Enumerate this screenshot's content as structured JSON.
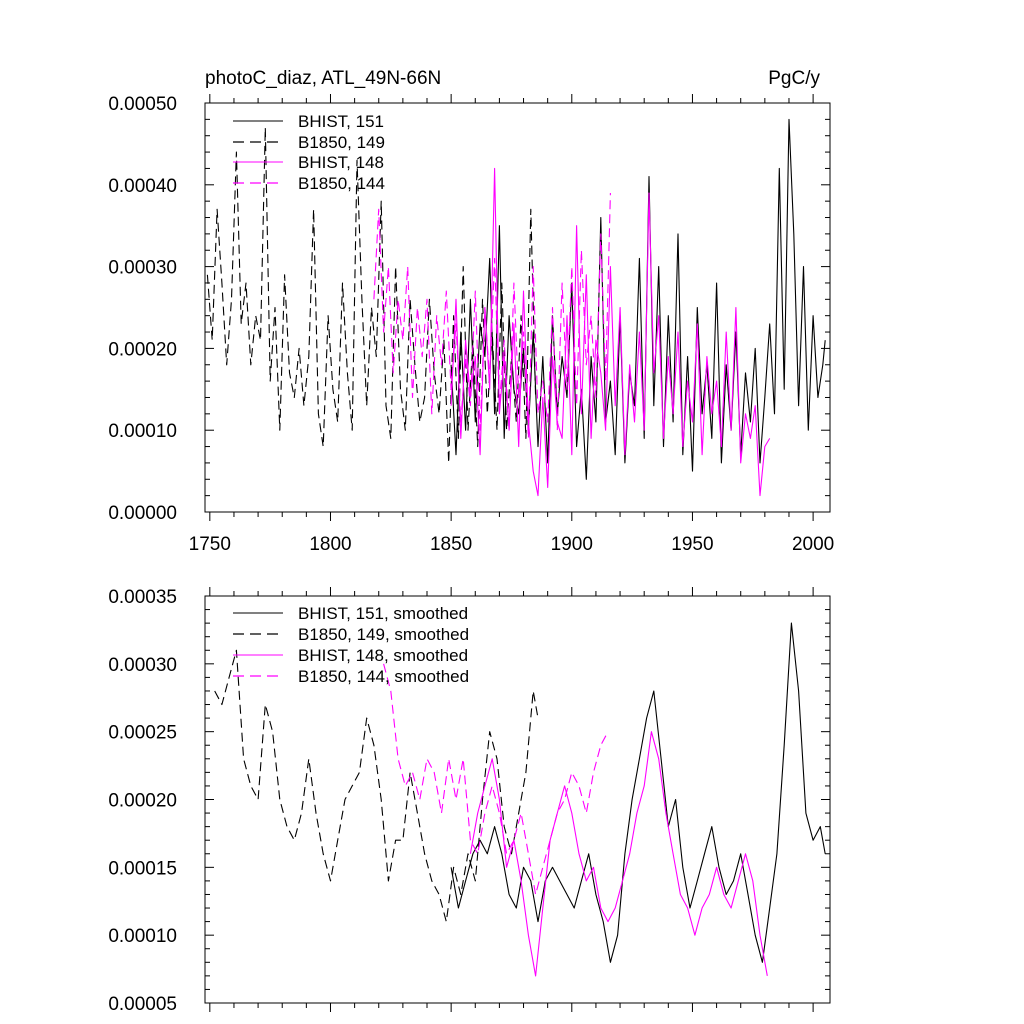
{
  "colors": {
    "black": "#000000",
    "magenta": "#ff00ff"
  },
  "chart_data": [
    {
      "type": "line",
      "title": "photoC_diaz, ATL_49N-66N",
      "units": "PgC/y",
      "xlabel": "",
      "ylabel": "",
      "xlim": [
        1748,
        2007
      ],
      "ylim": [
        0.0,
        0.0005
      ],
      "x_ticks": [
        "1750",
        "1800",
        "1850",
        "1900",
        "1950",
        "2000"
      ],
      "y_ticks": [
        "0.00000",
        "0.00010",
        "0.00020",
        "0.00030",
        "0.00040",
        "0.00050"
      ],
      "series": [
        {
          "name": "BHIST, 151",
          "color": "#000000",
          "dash": "solid",
          "x": [
            1850,
            1852,
            1854,
            1856,
            1858,
            1860,
            1862,
            1864,
            1866,
            1868,
            1870,
            1872,
            1874,
            1876,
            1878,
            1880,
            1882,
            1884,
            1886,
            1888,
            1890,
            1892,
            1894,
            1896,
            1898,
            1900,
            1902,
            1904,
            1906,
            1908,
            1910,
            1912,
            1914,
            1916,
            1918,
            1920,
            1922,
            1924,
            1926,
            1928,
            1930,
            1932,
            1934,
            1936,
            1938,
            1940,
            1942,
            1944,
            1946,
            1948,
            1950,
            1952,
            1954,
            1956,
            1958,
            1960,
            1962,
            1964,
            1966,
            1968,
            1970,
            1972,
            1974,
            1976,
            1978,
            1980,
            1982,
            1984,
            1986,
            1988,
            1990,
            1992,
            1994,
            1996,
            1998,
            2000,
            2002,
            2004,
            2005
          ],
          "values": [
            0.00018,
            7e-05,
            0.00022,
            0.0001,
            0.00026,
            0.00011,
            0.00023,
            0.00019,
            0.00031,
            0.00012,
            0.00035,
            9e-05,
            0.00024,
            0.00015,
            0.00012,
            0.0002,
            0.0001,
            0.00022,
            8e-05,
            0.00019,
            6e-05,
            0.00024,
            0.00012,
            0.00019,
            0.00014,
            0.00028,
            8e-05,
            0.00015,
            4e-05,
            0.00019,
            0.00011,
            0.00036,
            0.00011,
            0.00016,
            7e-05,
            0.00024,
            6e-05,
            0.00017,
            0.00013,
            0.00031,
            9e-05,
            0.00041,
            0.00013,
            0.0003,
            8e-05,
            0.00024,
            0.00011,
            0.00034,
            7e-05,
            0.00019,
            5e-05,
            0.00025,
            0.00012,
            0.00018,
            9e-05,
            0.00028,
            6e-05,
            0.00018,
            0.0001,
            0.00022,
            7e-05,
            0.00017,
            0.00011,
            0.0002,
            6e-05,
            0.00014,
            0.00023,
            0.00012,
            0.00042,
            0.00015,
            0.00048,
            0.00034,
            0.00013,
            0.0003,
            0.0001,
            0.00024,
            0.00014,
            0.00018,
            0.00021
          ]
        },
        {
          "name": "B1850, 149",
          "color": "#000000",
          "dash": "dashed",
          "x": [
            1749,
            1751,
            1753,
            1755,
            1757,
            1759,
            1761,
            1763,
            1765,
            1767,
            1769,
            1771,
            1773,
            1775,
            1777,
            1779,
            1781,
            1783,
            1785,
            1787,
            1789,
            1791,
            1793,
            1795,
            1797,
            1799,
            1801,
            1803,
            1805,
            1807,
            1809,
            1811,
            1813,
            1815,
            1817,
            1819,
            1821,
            1823,
            1825,
            1827,
            1829,
            1831,
            1833,
            1835,
            1837,
            1839,
            1841,
            1843,
            1845,
            1847,
            1849,
            1851,
            1853,
            1855,
            1857,
            1859,
            1861,
            1863,
            1865,
            1867,
            1869,
            1871,
            1873,
            1875,
            1877,
            1879,
            1881,
            1883,
            1885
          ],
          "values": [
            0.00029,
            0.00021,
            0.00037,
            0.00028,
            0.00018,
            0.00026,
            0.00044,
            0.00023,
            0.00028,
            0.00018,
            0.00024,
            0.00021,
            0.00047,
            0.00016,
            0.00025,
            0.0001,
            0.00029,
            0.00017,
            0.00014,
            0.0002,
            0.00013,
            0.00019,
            0.00037,
            0.00012,
            8e-05,
            0.00024,
            0.00015,
            0.00011,
            0.00028,
            0.00017,
            0.0001,
            0.00043,
            0.00026,
            0.00013,
            0.00025,
            0.00019,
            0.00038,
            0.00013,
            9e-05,
            0.0003,
            0.00015,
            0.0001,
            0.00026,
            0.00018,
            0.00011,
            0.00014,
            0.00026,
            0.00017,
            0.00012,
            0.00021,
            6e-05,
            0.00024,
            9e-05,
            0.0003,
            0.0001,
            0.00021,
            8e-05,
            0.00026,
            0.00012,
            0.00022,
            0.0001,
            0.00028,
            0.0001,
            0.00019,
            0.00011,
            0.00024,
            9e-05,
            0.00037,
            0.00014
          ]
        },
        {
          "name": "BHIST, 148",
          "color": "#ff00ff",
          "dash": "solid",
          "x": [
            1850,
            1852,
            1854,
            1856,
            1858,
            1860,
            1862,
            1864,
            1866,
            1868,
            1870,
            1872,
            1874,
            1876,
            1878,
            1880,
            1882,
            1884,
            1886,
            1888,
            1890,
            1892,
            1894,
            1896,
            1898,
            1900,
            1902,
            1904,
            1906,
            1908,
            1910,
            1912,
            1914,
            1916,
            1918,
            1920,
            1922,
            1924,
            1926,
            1928,
            1930,
            1932,
            1934,
            1936,
            1938,
            1940,
            1942,
            1944,
            1946,
            1948,
            1950,
            1952,
            1954,
            1956,
            1958,
            1960,
            1962,
            1964,
            1966,
            1968,
            1970,
            1972,
            1974,
            1976,
            1978,
            1980,
            1982
          ],
          "values": [
            0.00013,
            0.00026,
            9e-05,
            0.00021,
            0.00014,
            0.00019,
            7e-05,
            0.00025,
            0.00015,
            0.00042,
            0.00012,
            0.00019,
            0.0001,
            0.00023,
            8e-05,
            0.00027,
            0.00011,
            5e-05,
            2e-05,
            0.00014,
            3e-05,
            0.00019,
            0.00011,
            9e-05,
            0.00024,
            7e-05,
            0.00035,
            0.00012,
            0.00029,
            9e-05,
            0.00021,
            0.00017,
            0.0001,
            0.0003,
            0.00013,
            0.00025,
            7e-05,
            0.00018,
            0.00011,
            0.00022,
            0.0001,
            0.00039,
            0.00017,
            0.00024,
            9e-05,
            0.00019,
            0.00012,
            0.00022,
            8e-05,
            0.00016,
            0.00011,
            0.00023,
            7e-05,
            0.00019,
            0.00012,
            0.00016,
            8e-05,
            0.00022,
            0.0001,
            0.00025,
            6e-05,
            0.00012,
            9e-05,
            0.00013,
            2e-05,
            8e-05,
            9e-05
          ]
        },
        {
          "name": "B1850, 144",
          "color": "#ff00ff",
          "dash": "dashed",
          "x": [
            1818,
            1820,
            1822,
            1824,
            1826,
            1828,
            1830,
            1832,
            1834,
            1836,
            1838,
            1840,
            1842,
            1844,
            1846,
            1848,
            1850,
            1852,
            1854,
            1856,
            1858,
            1860,
            1862,
            1864,
            1866,
            1868,
            1870,
            1872,
            1874,
            1876,
            1878,
            1880,
            1882,
            1884,
            1886,
            1888,
            1890,
            1892,
            1894,
            1896,
            1898,
            1900,
            1902,
            1904,
            1906,
            1908,
            1910,
            1912,
            1914,
            1916
          ],
          "values": [
            0.00026,
            0.00037,
            0.00022,
            0.0003,
            0.00017,
            0.00026,
            0.00021,
            0.0003,
            0.00014,
            0.00025,
            0.00019,
            0.00026,
            0.00012,
            0.00024,
            0.00018,
            0.00027,
            0.00015,
            0.00023,
            0.00011,
            0.00019,
            0.00013,
            0.00027,
            0.0001,
            0.00025,
            0.00016,
            0.00031,
            0.00013,
            0.00021,
            0.0001,
            0.00028,
            0.00014,
            0.00022,
            9e-05,
            0.0003,
            0.00012,
            0.00016,
            0.00011,
            0.00025,
            0.0001,
            0.00028,
            0.00015,
            0.0003,
            0.00013,
            0.00032,
            0.00018,
            0.00024,
            0.00014,
            0.00034,
            0.00016,
            0.00039
          ]
        }
      ]
    },
    {
      "type": "line",
      "title": "",
      "xlabel": "",
      "ylabel": "",
      "xlim": [
        1748,
        2007
      ],
      "ylim": [
        5e-05,
        0.00035
      ],
      "y_ticks": [
        "0.00005",
        "0.00010",
        "0.00015",
        "0.00020",
        "0.00025",
        "0.00030",
        "0.00035"
      ],
      "series": [
        {
          "name": "BHIST, 151, smoothed",
          "color": "#000000",
          "dash": "solid",
          "x": [
            1850,
            1853,
            1856,
            1859,
            1862,
            1865,
            1868,
            1871,
            1874,
            1877,
            1880,
            1883,
            1886,
            1889,
            1892,
            1895,
            1898,
            1901,
            1904,
            1907,
            1910,
            1913,
            1916,
            1919,
            1922,
            1925,
            1928,
            1931,
            1934,
            1937,
            1940,
            1943,
            1946,
            1949,
            1952,
            1955,
            1958,
            1961,
            1964,
            1967,
            1970,
            1973,
            1976,
            1979,
            1982,
            1985,
            1988,
            1991,
            1994,
            1997,
            2000,
            2003,
            2005
          ],
          "values": [
            0.00015,
            0.00012,
            0.00014,
            0.00016,
            0.00017,
            0.00016,
            0.00018,
            0.00016,
            0.00013,
            0.00012,
            0.00015,
            0.00014,
            0.00011,
            0.00014,
            0.00015,
            0.00014,
            0.00013,
            0.00012,
            0.00014,
            0.00016,
            0.00013,
            0.00011,
            8e-05,
            0.0001,
            0.00016,
            0.0002,
            0.00023,
            0.00026,
            0.00028,
            0.00023,
            0.00018,
            0.0002,
            0.00015,
            0.00012,
            0.00014,
            0.00016,
            0.00018,
            0.00015,
            0.00013,
            0.00014,
            0.00016,
            0.00013,
            0.0001,
            8e-05,
            0.00012,
            0.00016,
            0.00024,
            0.00033,
            0.00028,
            0.00019,
            0.00017,
            0.00018,
            0.00016
          ]
        },
        {
          "name": "B1850, 149, smoothed",
          "color": "#000000",
          "dash": "dashed",
          "x": [
            1752,
            1755,
            1758,
            1761,
            1764,
            1767,
            1770,
            1773,
            1776,
            1779,
            1782,
            1785,
            1788,
            1791,
            1794,
            1797,
            1800,
            1803,
            1806,
            1809,
            1812,
            1815,
            1818,
            1821,
            1824,
            1827,
            1830,
            1833,
            1836,
            1839,
            1842,
            1845,
            1848,
            1851,
            1854,
            1857,
            1860,
            1863,
            1866,
            1869,
            1872,
            1875,
            1878,
            1881,
            1884,
            1886
          ],
          "values": [
            0.00028,
            0.00027,
            0.00029,
            0.00031,
            0.00023,
            0.00021,
            0.0002,
            0.00027,
            0.00025,
            0.0002,
            0.00018,
            0.00017,
            0.00019,
            0.00023,
            0.00019,
            0.00016,
            0.00014,
            0.00017,
            0.0002,
            0.00021,
            0.00022,
            0.00026,
            0.00024,
            0.0002,
            0.00014,
            0.00017,
            0.00017,
            0.00022,
            0.00019,
            0.00016,
            0.00014,
            0.00013,
            0.00011,
            0.00015,
            0.00013,
            0.00016,
            0.00014,
            0.0002,
            0.00025,
            0.00023,
            0.00018,
            0.00016,
            0.00019,
            0.00022,
            0.00028,
            0.00026
          ]
        },
        {
          "name": "BHIST, 148, smoothed",
          "color": "#ff00ff",
          "dash": "solid",
          "x": [
            1858,
            1861,
            1864,
            1867,
            1870,
            1873,
            1876,
            1879,
            1882,
            1885,
            1888,
            1891,
            1894,
            1897,
            1900,
            1903,
            1906,
            1909,
            1912,
            1915,
            1918,
            1921,
            1924,
            1927,
            1930,
            1933,
            1936,
            1939,
            1942,
            1945,
            1948,
            1951,
            1954,
            1957,
            1960,
            1963,
            1966,
            1969,
            1972,
            1975,
            1978,
            1981
          ],
          "values": [
            0.00016,
            0.00019,
            0.00021,
            0.00023,
            0.0002,
            0.00015,
            0.00017,
            0.00014,
            0.0001,
            7e-05,
            0.00012,
            0.00017,
            0.00019,
            0.00021,
            0.00019,
            0.00016,
            0.00014,
            0.00015,
            0.00012,
            0.00011,
            0.00012,
            0.00014,
            0.00016,
            0.00019,
            0.00021,
            0.00025,
            0.00023,
            0.00019,
            0.00016,
            0.00013,
            0.00012,
            0.0001,
            0.00012,
            0.00013,
            0.00015,
            0.00013,
            0.00012,
            0.00014,
            0.00016,
            0.00014,
            0.0001,
            7e-05
          ]
        },
        {
          "name": "B1850, 144, smoothed",
          "color": "#ff00ff",
          "dash": "dashed",
          "x": [
            1822,
            1825,
            1828,
            1831,
            1834,
            1837,
            1840,
            1843,
            1846,
            1849,
            1852,
            1855,
            1858,
            1861,
            1864,
            1867,
            1870,
            1873,
            1876,
            1879,
            1882,
            1885,
            1888,
            1891,
            1894,
            1897,
            1900,
            1903,
            1906,
            1909,
            1912,
            1915
          ],
          "values": [
            0.0003,
            0.00028,
            0.00023,
            0.00021,
            0.00022,
            0.0002,
            0.00023,
            0.00022,
            0.00019,
            0.00023,
            0.0002,
            0.00023,
            0.00017,
            0.00016,
            0.00019,
            0.00021,
            0.00019,
            0.00016,
            0.00017,
            0.00019,
            0.00016,
            0.00013,
            0.00015,
            0.00017,
            0.00019,
            0.0002,
            0.00022,
            0.00021,
            0.00019,
            0.00022,
            0.00024,
            0.00025
          ]
        }
      ]
    }
  ]
}
